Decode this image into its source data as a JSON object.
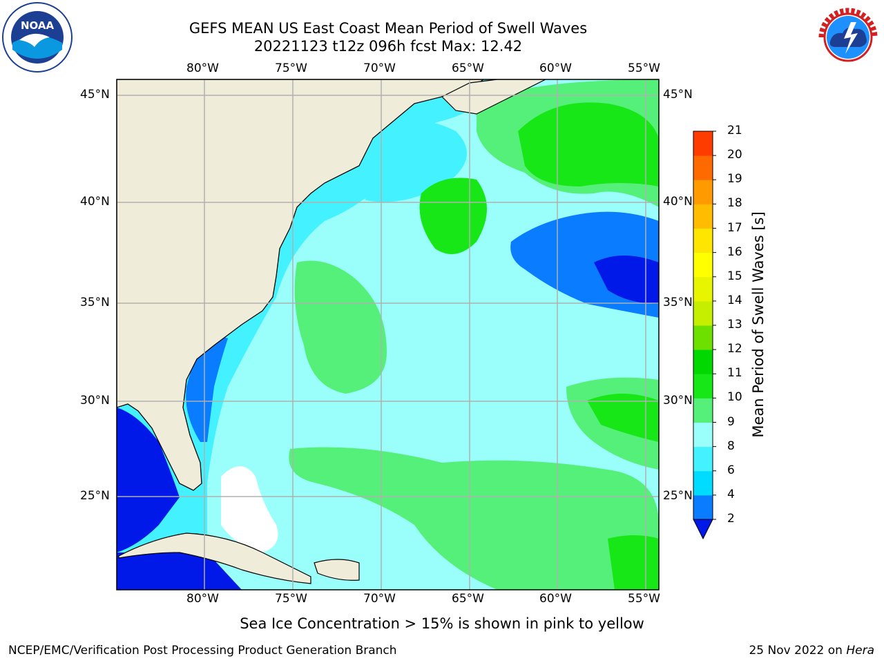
{
  "title_line1": "GEFS MEAN US East Coast Mean Period of Swell Waves",
  "title_line2": "20221123 t12z 096h fcst   Max: 12.42",
  "logos": {
    "left": "noaa-logo",
    "right": "national-weather-service-logo"
  },
  "map": {
    "lon_labels": [
      "80°W",
      "75°W",
      "70°W",
      "65°W",
      "60°W",
      "55°W"
    ],
    "lat_labels": [
      "45°N",
      "40°N",
      "35°N",
      "30°N",
      "25°N"
    ],
    "lon_range": [
      -85,
      -54.5
    ],
    "lat_range": [
      20.5,
      46.5
    ],
    "colors": {
      "land": "#efedda",
      "grid": "#b0b0b0",
      "coast": "#000000"
    }
  },
  "colorbar": {
    "label": "Mean Period of Swell Waves [s]",
    "levels": [
      "2",
      "4",
      "6",
      "8",
      "9",
      "10",
      "11",
      "12",
      "13",
      "14",
      "15",
      "16",
      "17",
      "18",
      "19",
      "20",
      "21"
    ],
    "colors": [
      "#0a7cff",
      "#00dcff",
      "#44f2ff",
      "#9afffb",
      "#55f07a",
      "#17e617",
      "#00d800",
      "#6ee000",
      "#c6ef00",
      "#e8f500",
      "#ffff00",
      "#ffe600",
      "#ffbc00",
      "#ff9a00",
      "#ff6a00",
      "#ff3c00",
      "#ff1000"
    ],
    "under_color": "#0018e8"
  },
  "subtitle": "Sea Ice Concentration > 15% is shown in pink to yellow",
  "footer": {
    "credit": "NCEP/EMC/Verification Post Processing Product Generation Branch",
    "date": "25 Nov 2022 on ",
    "machine": "Hera"
  }
}
